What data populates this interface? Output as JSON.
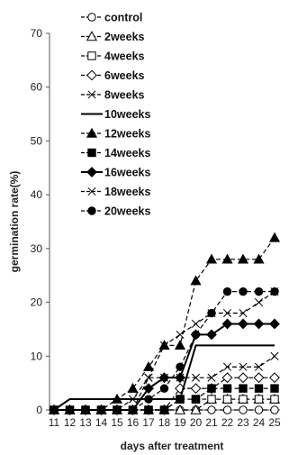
{
  "chart_data": {
    "type": "line",
    "xlabel": "days after treatment",
    "ylabel": "germination rate(%)",
    "x": [
      11,
      12,
      13,
      14,
      15,
      16,
      17,
      18,
      19,
      20,
      21,
      22,
      23,
      24,
      25
    ],
    "xlim": [
      11,
      25
    ],
    "ylim": [
      0,
      70
    ],
    "yticks": [
      0,
      10,
      20,
      30,
      40,
      50,
      60,
      70
    ],
    "grid": false,
    "legend_position": "top-left",
    "series": [
      {
        "name": "control",
        "marker": "circle-open",
        "dash": "dashed",
        "values": [
          0,
          0,
          0,
          0,
          0,
          0,
          0,
          0,
          0,
          0,
          0,
          0,
          0,
          0,
          0
        ]
      },
      {
        "name": "2weeks",
        "marker": "triangle-open",
        "dash": "dashed",
        "values": [
          0,
          0,
          0,
          0,
          0,
          0,
          0,
          0,
          0,
          0,
          2,
          2,
          2,
          2,
          2
        ]
      },
      {
        "name": "4weeks",
        "marker": "square-open",
        "dash": "dashed",
        "values": [
          0,
          0,
          0,
          0,
          0,
          0,
          0,
          0,
          2,
          2,
          2,
          2,
          2,
          2,
          2
        ]
      },
      {
        "name": "6weeks",
        "marker": "diamond-open",
        "dash": "dashed",
        "values": [
          0,
          0,
          0,
          0,
          0,
          0,
          0,
          0,
          4,
          4,
          4,
          6,
          6,
          6,
          6
        ]
      },
      {
        "name": "8weeks",
        "marker": "x",
        "dash": "dashed",
        "values": [
          0,
          0,
          0,
          0,
          0,
          0,
          6,
          6,
          6,
          6,
          6,
          8,
          8,
          8,
          10
        ]
      },
      {
        "name": "10weeks",
        "marker": "none",
        "dash": "solid",
        "values": [
          0,
          2,
          2,
          2,
          2,
          2,
          2,
          2,
          2,
          12,
          12,
          12,
          12,
          12,
          12
        ]
      },
      {
        "name": "12weeks",
        "marker": "triangle-filled",
        "dash": "dashed",
        "values": [
          0,
          0,
          0,
          0,
          2,
          4,
          8,
          12,
          12,
          24,
          28,
          28,
          28,
          28,
          32
        ]
      },
      {
        "name": "14weeks",
        "marker": "square-filled",
        "dash": "dashed",
        "values": [
          0,
          0,
          0,
          0,
          0,
          0,
          0,
          0,
          2,
          2,
          4,
          4,
          4,
          4,
          4
        ]
      },
      {
        "name": "16weeks",
        "marker": "diamond-filled",
        "dash": "solid",
        "values": [
          0,
          0,
          0,
          0,
          0,
          0,
          4,
          6,
          6,
          14,
          14,
          16,
          16,
          16,
          16
        ]
      },
      {
        "name": "18weeks",
        "marker": "x",
        "dash": "dashed",
        "values": [
          0,
          0,
          0,
          0,
          0,
          2,
          6,
          12,
          14,
          16,
          18,
          18,
          18,
          20,
          22
        ]
      },
      {
        "name": "20weeks",
        "marker": "circle-filled",
        "dash": "dashed",
        "values": [
          0,
          0,
          0,
          0,
          0,
          0,
          2,
          4,
          8,
          14,
          18,
          22,
          22,
          22,
          22
        ]
      }
    ]
  }
}
